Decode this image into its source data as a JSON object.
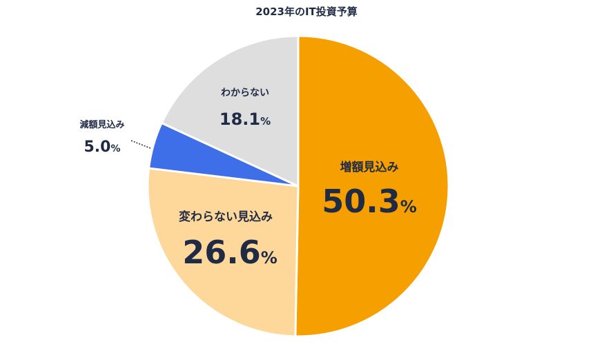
{
  "chart_data": {
    "type": "pie",
    "title": "2023年のIT投資予算",
    "slices": [
      {
        "label": "増額見込み",
        "value": 50.3,
        "color": "#F5A000"
      },
      {
        "label": "変わらない見込み",
        "value": 26.6,
        "color": "#FDD89A"
      },
      {
        "label": "減額見込み",
        "value": 5.0,
        "color": "#3E6FE8"
      },
      {
        "label": "わからない",
        "value": 18.1,
        "color": "#DEDEDE"
      }
    ],
    "unit": "%"
  }
}
